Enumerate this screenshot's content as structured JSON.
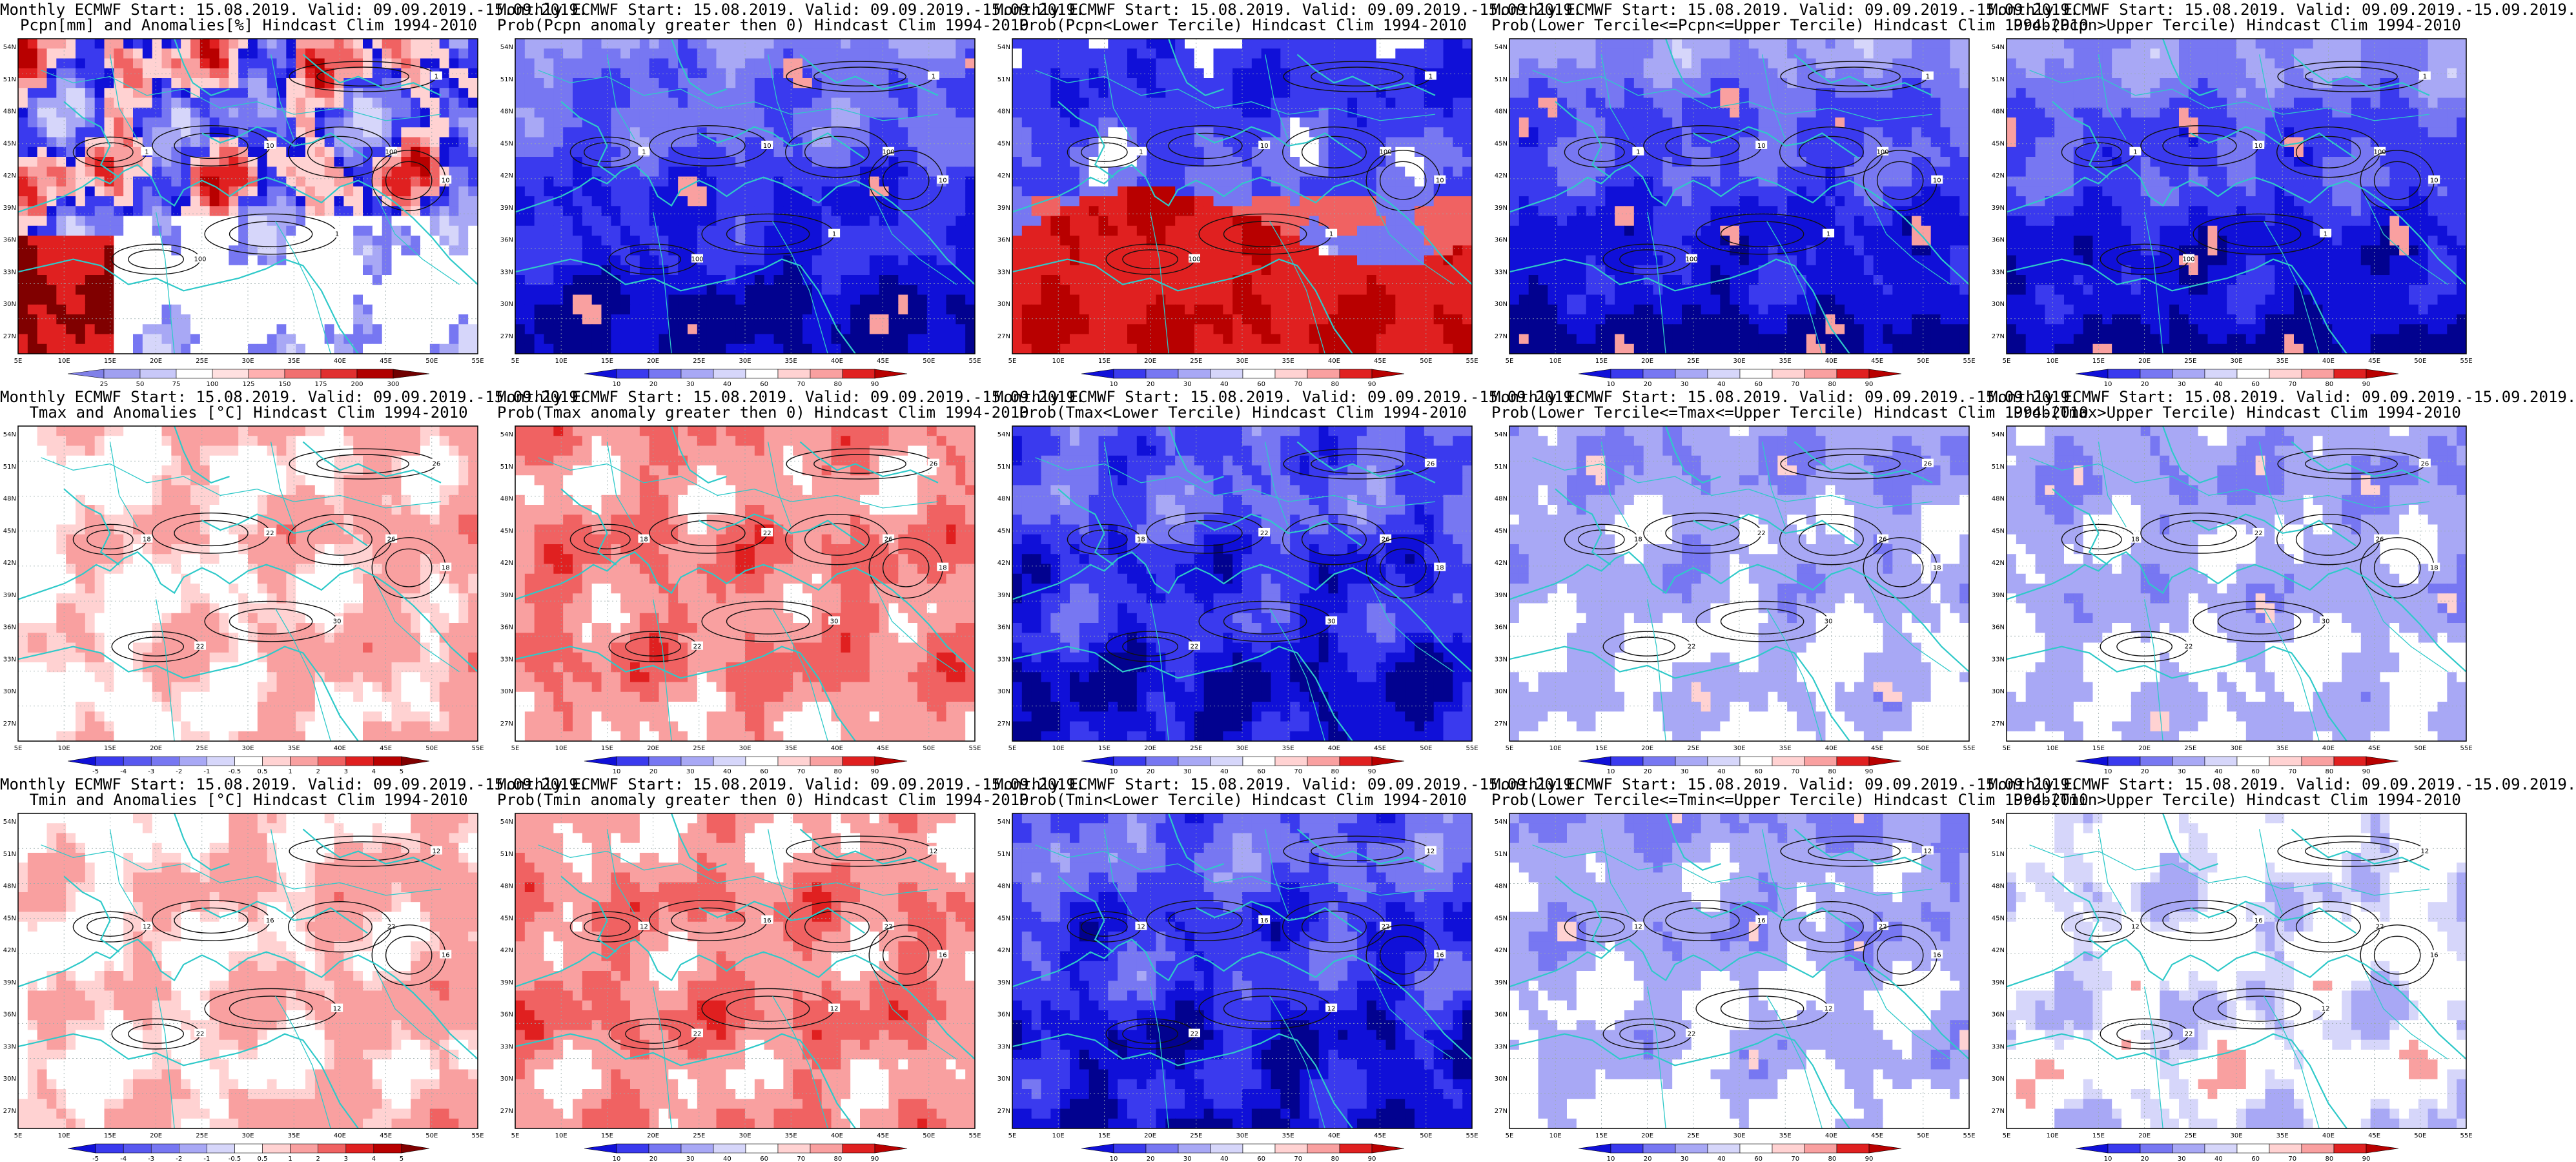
{
  "colors": {
    "land_outline": "#2fc9c9",
    "contour": "#111111",
    "plot_border": "#000000",
    "blues": [
      "#02028f",
      "#1010d8",
      "#3a3aee",
      "#7777f2",
      "#a8a8f5",
      "#d6d6fa"
    ],
    "reds": [
      "#ffd2d2",
      "#f9a0a0",
      "#f06262",
      "#e02020",
      "#b80000",
      "#800000"
    ]
  },
  "latitude_labels": [
    "54N",
    "51N",
    "48N",
    "45N",
    "42N",
    "39N",
    "36N",
    "33N",
    "30N",
    "27N"
  ],
  "longitude_labels": [
    "5E",
    "10E",
    "15E",
    "20E",
    "25E",
    "30E",
    "35E",
    "40E",
    "45E",
    "50E",
    "55E"
  ],
  "colorbars": {
    "pcpn_anom": [
      "25",
      "50",
      "75",
      "100",
      "125",
      "150",
      "175",
      "200",
      "300"
    ],
    "temp_anom": [
      "-5",
      "-4",
      "-3",
      "-2",
      "-1",
      "-0.5",
      "0.5",
      "1",
      "2",
      "3",
      "4",
      "5"
    ],
    "prob": [
      "10",
      "20",
      "30",
      "40",
      "60",
      "70",
      "80",
      "90"
    ]
  },
  "panels": [
    {
      "t1": "Monthly ECMWF Start: 15.08.2019. Valid: 09.09.2019.-15.09.2019.",
      "t2": "Pcpn[mm] and Anomalies[%] Hindcast Clim 1994-2010",
      "cb": "pcpn_anom",
      "field": "mixed",
      "contours": [
        "1",
        "10",
        "100"
      ]
    },
    {
      "t1": "Monthly ECMWF Start: 15.08.2019. Valid: 09.09.2019.-15.09.2019.",
      "t2": "Prob(Pcpn anomaly greater then 0) Hindcast Clim 1994-2010",
      "cb": "prob",
      "field": "blue_strong",
      "contours": [
        "1",
        "10",
        "100"
      ]
    },
    {
      "t1": "Monthly ECMWF Start: 15.08.2019. Valid: 09.09.2019.-15.09.2019.",
      "t2": "Prob(Pcpn<Lower Tercile) Hindcast Clim 1994-2010",
      "cb": "prob",
      "field": "red_south",
      "contours": [
        "1",
        "10",
        "100"
      ]
    },
    {
      "t1": "Monthly ECMWF Start: 15.08.2019. Valid: 09.09.2019.-15.09.2019.",
      "t2": "Prob(Lower Tercile<=Pcpn<=Upper Tercile) Hindcast Clim 1994-2010",
      "cb": "prob",
      "field": "blue_strong",
      "contours": [
        "1",
        "10",
        "100"
      ]
    },
    {
      "t1": "Monthly ECMWF Start: 15.08.2019. Valid: 09.09.2019.-15.09.2019.",
      "t2": "Prob(Pcpn>Upper Tercile) Hindcast Clim 1994-2010",
      "cb": "prob",
      "field": "blue_strong",
      "contours": [
        "1",
        "10",
        "100"
      ]
    },
    {
      "t1": "Monthly ECMWF Start: 15.08.2019. Valid: 09.09.2019.-15.09.2019.",
      "t2": "Tmax and Anomalies [°C] Hindcast Clim 1994-2010",
      "cb": "temp_anom",
      "field": "red_light",
      "contours": [
        "18",
        "22",
        "26",
        "30"
      ]
    },
    {
      "t1": "Monthly ECMWF Start: 15.08.2019. Valid: 09.09.2019.-15.09.2019.",
      "t2": "Prob(Tmax anomaly greater then 0) Hindcast Clim 1994-2010",
      "cb": "prob",
      "field": "red_mid",
      "contours": [
        "18",
        "22",
        "26",
        "30"
      ]
    },
    {
      "t1": "Monthly ECMWF Start: 15.08.2019. Valid: 09.09.2019.-15.09.2019.",
      "t2": "Prob(Tmax<Lower Tercile) Hindcast Clim 1994-2010",
      "cb": "prob",
      "field": "blue_deep",
      "contours": [
        "18",
        "22",
        "26",
        "30"
      ]
    },
    {
      "t1": "Monthly ECMWF Start: 15.08.2019. Valid: 09.09.2019.-15.09.2019.",
      "t2": "Prob(Lower Tercile<=Tmax<=Upper Tercile) Hindcast Clim 1994-2010",
      "cb": "prob",
      "field": "blue_light",
      "contours": [
        "18",
        "22",
        "26",
        "30"
      ]
    },
    {
      "t1": "Monthly ECMWF Start: 15.08.2019. Valid: 09.09.2019.-15.09.2019.",
      "t2": "Prob(Tmax>Upper Tercile) Hindcast Clim 1994-2010",
      "cb": "prob",
      "field": "blue_light",
      "contours": [
        "18",
        "22",
        "26",
        "30"
      ]
    },
    {
      "t1": "Monthly ECMWF Start: 15.08.2019. Valid: 09.09.2019.-15.09.2019.",
      "t2": "Tmin and Anomalies [°C] Hindcast Clim 1994-2010",
      "cb": "temp_anom",
      "field": "red_light",
      "contours": [
        "12",
        "16",
        "22"
      ]
    },
    {
      "t1": "Monthly ECMWF Start: 15.08.2019. Valid: 09.09.2019.-15.09.2019.",
      "t2": "Prob(Tmin anomaly greater then 0) Hindcast Clim 1994-2010",
      "cb": "prob",
      "field": "red_mid",
      "contours": [
        "12",
        "16",
        "22"
      ]
    },
    {
      "t1": "Monthly ECMWF Start: 15.08.2019. Valid: 09.09.2019.-15.09.2019.",
      "t2": "Prob(Tmin<Lower Tercile) Hindcast Clim 1994-2010",
      "cb": "prob",
      "field": "blue_deep",
      "contours": [
        "12",
        "16",
        "22"
      ]
    },
    {
      "t1": "Monthly ECMWF Start: 15.08.2019. Valid: 09.09.2019.-15.09.2019.",
      "t2": "Prob(Lower Tercile<=Tmin<=Upper Tercile) Hindcast Clim 1994-2010",
      "cb": "prob",
      "field": "blue_light",
      "contours": [
        "12",
        "16",
        "22"
      ]
    },
    {
      "t1": "Monthly ECMWF Start: 15.08.2019. Valid: 09.09.2019.-15.09.2019.",
      "t2": "Prob(Tmin>Upper Tercile) Hindcast Clim 1994-2010",
      "cb": "prob",
      "field": "white_mix",
      "contours": [
        "12",
        "16",
        "22"
      ]
    }
  ]
}
